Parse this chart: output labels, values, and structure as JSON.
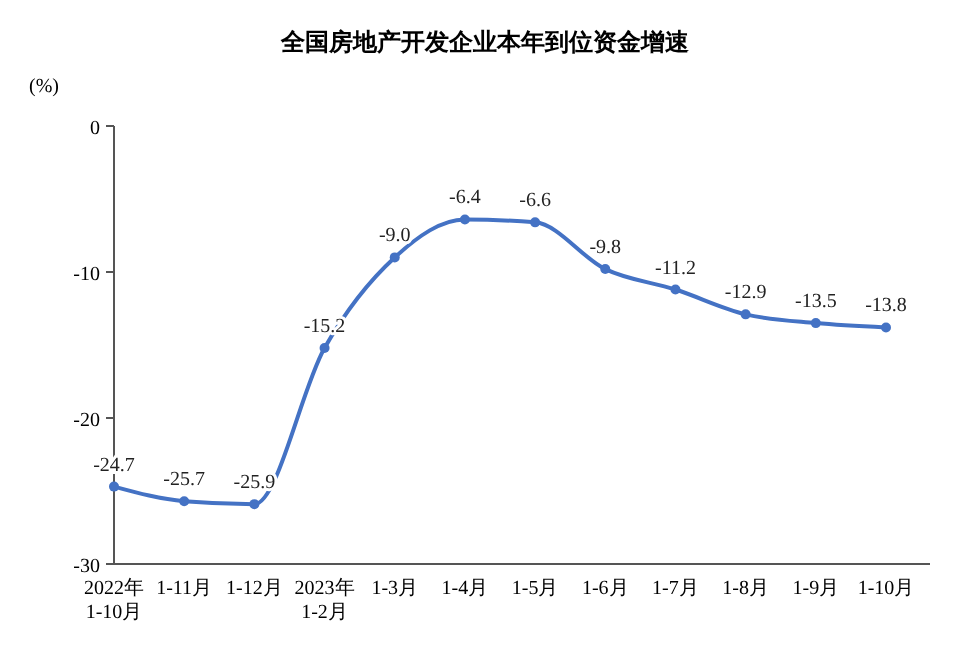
{
  "chart_data": {
    "type": "line",
    "title": "全国房地产开发企业本年到位资金增速",
    "ylabel": "(%)",
    "categories": [
      "2022年\n1-10月",
      "1-11月",
      "1-12月",
      "2023年\n1-2月",
      "1-3月",
      "1-4月",
      "1-5月",
      "1-6月",
      "1-7月",
      "1-8月",
      "1-9月",
      "1-10月"
    ],
    "series": [
      {
        "color": "#4472c4",
        "values": [
          -24.7,
          -25.7,
          -25.9,
          -15.2,
          -9.0,
          -6.4,
          -6.6,
          -9.8,
          -11.2,
          -12.9,
          -13.5,
          -13.8
        ],
        "value_labels": [
          "-24.7",
          "-25.7",
          "-25.9",
          "-15.2",
          "-9.0",
          "-6.4",
          "-6.6",
          "-9.8",
          "-11.2",
          "-12.9",
          "-13.5",
          "-13.8"
        ]
      }
    ],
    "ylim": [
      -30,
      0
    ],
    "yticks": [
      0,
      -10,
      -20,
      -30
    ],
    "marker": "circle",
    "line_style": "solid",
    "grid": false
  }
}
